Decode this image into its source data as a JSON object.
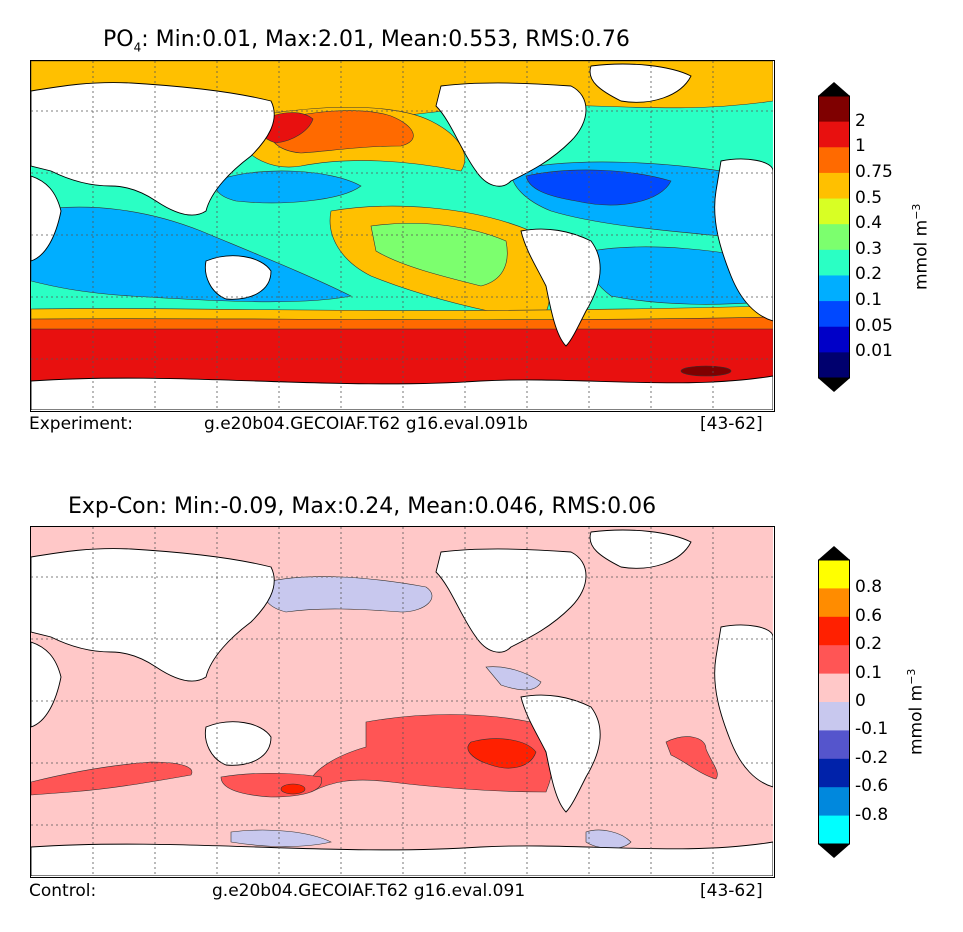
{
  "top_panel": {
    "title_species": "PO",
    "title_species_sub": "4",
    "title_stats": ": Min:0.01, Max:2.01, Mean:0.553, RMS:0.76",
    "caption_left": "Experiment:",
    "caption_case": "g.e20b04.GECOIAF.T62 g16.eval.091b",
    "caption_years": "[43-62]",
    "colorbar": {
      "labels": [
        "2",
        "1",
        "0.75",
        "0.5",
        "0.4",
        "0.3",
        "0.2",
        "0.1",
        "0.05",
        "0.01"
      ],
      "colors": [
        "#7f0000",
        "#e8100f",
        "#ff6a00",
        "#ffc000",
        "#d8ff24",
        "#7cff6e",
        "#2affc4",
        "#00aeff",
        "#0048ff",
        "#0000c8",
        "#00006e"
      ],
      "top_extend_color": "#000000",
      "bottom_extend_color": "#000000",
      "units": "mmol m",
      "units_sup": "−3"
    }
  },
  "bottom_panel": {
    "title": "Exp-Con: Min:-0.09, Max:0.24, Mean:0.046, RMS:0.06",
    "caption_left": "Control:",
    "caption_case": "g.e20b04.GECOIAF.T62 g16.eval.091",
    "caption_years": "[43-62]",
    "colorbar": {
      "labels": [
        "0.8",
        "0.6",
        "0.2",
        "0.1",
        "0",
        "-0.1",
        "-0.2",
        "-0.6",
        "-0.8"
      ],
      "colors": [
        "#ffff00",
        "#ff8c00",
        "#ff2000",
        "#ff5555",
        "#ffc8c8",
        "#c8c8ee",
        "#5555cc",
        "#0022aa",
        "#0088dd",
        "#00ffff"
      ],
      "top_extend_color": "#000000",
      "bottom_extend_color": "#000000",
      "units": "mmol m",
      "units_sup": "−3"
    }
  },
  "colors": {
    "land": "#ffffff",
    "grid": "#555555"
  }
}
